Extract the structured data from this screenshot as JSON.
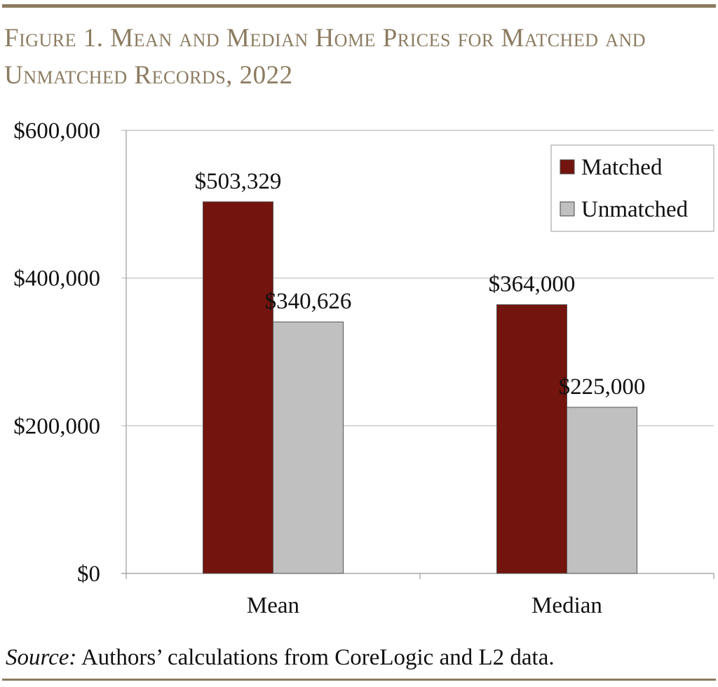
{
  "title": "Figure 1. Mean and Median Home Prices for Matched and Unmatched Records, 2022",
  "source_label": "Source:",
  "source_text": " Authors’ calculations from CoreLogic and L2 data.",
  "chart_data": {
    "type": "bar",
    "title": "Figure 1. Mean and Median Home Prices for Matched and Unmatched Records, 2022",
    "categories": [
      "Mean",
      "Median"
    ],
    "series": [
      {
        "name": "Matched",
        "values": [
          503329,
          364000
        ],
        "labels": [
          "$503,329",
          "$364,000"
        ],
        "color": "#74140e"
      },
      {
        "name": "Unmatched",
        "values": [
          340626,
          225000
        ],
        "labels": [
          "$340,626",
          "$225,000"
        ],
        "color": "#c0c0c0"
      }
    ],
    "ylim": [
      0,
      600000
    ],
    "yticks": [
      0,
      200000,
      400000,
      600000
    ],
    "ytick_labels": [
      "$0",
      "$200,000",
      "$400,000",
      "$600,000"
    ],
    "xlabel": "",
    "ylabel": "",
    "grid": true,
    "legend": "top-right"
  }
}
